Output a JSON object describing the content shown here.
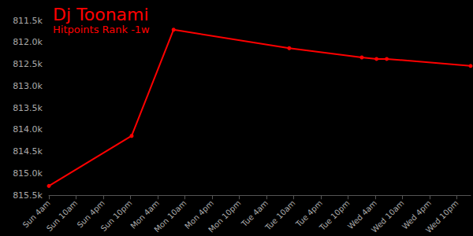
{
  "chart_data": {
    "type": "line",
    "title": "Dj Toonami",
    "subtitle": "Hitpoints Rank -1w",
    "x": [
      4,
      22.25,
      31.5,
      57,
      73,
      76.25,
      78.5,
      97
    ],
    "values": [
      815285,
      814140,
      811711,
      812134,
      812345,
      812380,
      812380,
      812540
    ],
    "color": "#ff0000",
    "marker": "circle",
    "grid": false,
    "xlim": [
      4,
      97
    ],
    "xticks": [
      {
        "value": 4,
        "label": "Sun 4am"
      },
      {
        "value": 10,
        "label": "Sun 10am"
      },
      {
        "value": 16,
        "label": "Sun 4pm"
      },
      {
        "value": 22,
        "label": "Sun 10pm"
      },
      {
        "value": 28,
        "label": "Mon 4am"
      },
      {
        "value": 34,
        "label": "Mon 10am"
      },
      {
        "value": 40,
        "label": "Mon 4pm"
      },
      {
        "value": 46,
        "label": "Mon 10pm"
      },
      {
        "value": 52,
        "label": "Tue 4am"
      },
      {
        "value": 58,
        "label": "Tue 10am"
      },
      {
        "value": 64,
        "label": "Tue 4pm"
      },
      {
        "value": 70,
        "label": "Tue 10pm"
      },
      {
        "value": 76,
        "label": "Wed 4am"
      },
      {
        "value": 82,
        "label": "Wed 10am"
      },
      {
        "value": 88,
        "label": "Wed 4pm"
      },
      {
        "value": 94,
        "label": "Wed 10pm"
      }
    ],
    "ylim": [
      815500,
      811500
    ],
    "yticks": [
      {
        "value": 811500,
        "label": "811.5k"
      },
      {
        "value": 812000,
        "label": "812.0k"
      },
      {
        "value": 812500,
        "label": "812.5k"
      },
      {
        "value": 813000,
        "label": "813.0k"
      },
      {
        "value": 813500,
        "label": "813.5k"
      },
      {
        "value": 814000,
        "label": "814.0k"
      },
      {
        "value": 814500,
        "label": "814.5k"
      },
      {
        "value": 815000,
        "label": "815.0k"
      },
      {
        "value": 815500,
        "label": "815.5k"
      }
    ]
  }
}
